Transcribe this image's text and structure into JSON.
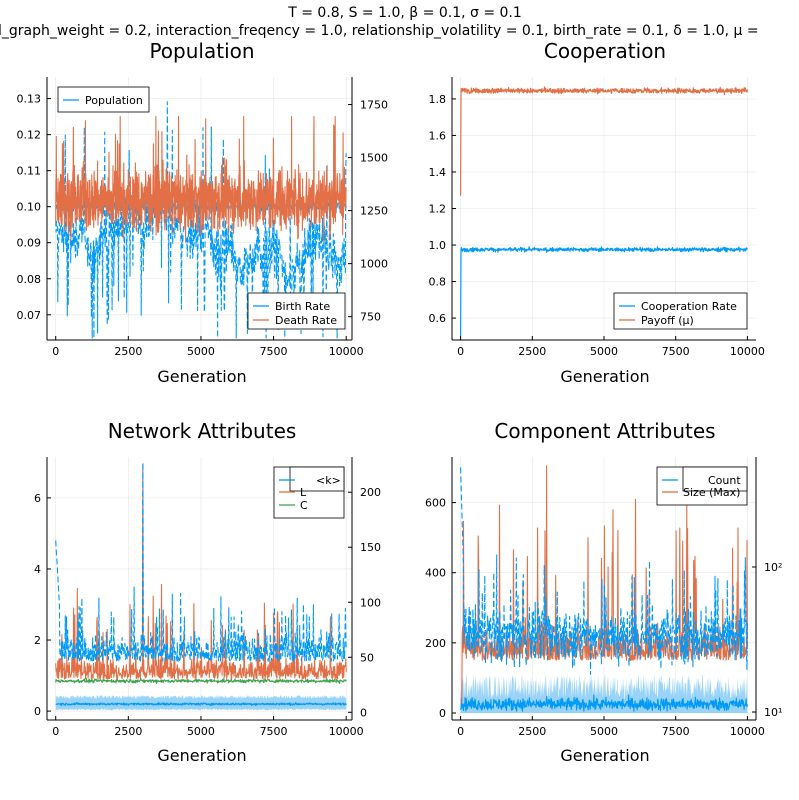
{
  "suptitle_line1": "T = 0.8, S = 1.0, β = 0.1, σ = 0.1",
  "suptitle_line2": "l_graph_weight = 0.2, interaction_freqency = 1.0, relationship_volatility = 0.1, birth_rate = 0.1, δ = 1.0, μ =",
  "colors": {
    "blue": "#009af9",
    "orange": "#e26f46",
    "green": "#3da44d",
    "band": "#7fc8f8"
  },
  "chart_data": [
    {
      "type": "line",
      "title": "Population",
      "xlabel": "Generation",
      "ylabel": "",
      "xlim": [
        -300,
        10200
      ],
      "ylim": [
        0.063,
        0.136
      ],
      "y2lim": [
        640,
        1880
      ],
      "xticks": [
        "0",
        "2500",
        "5000",
        "7500",
        "10000"
      ],
      "yticks": [
        "0.07",
        "0.08",
        "0.09",
        "0.10",
        "0.11",
        "0.12",
        "0.13"
      ],
      "y2ticks": [
        "750",
        "1000",
        "1250",
        "1500",
        "1750"
      ],
      "legend_top": {
        "position": "top-left",
        "entries": [
          "Population"
        ]
      },
      "legend_bottom": {
        "position": "bottom-right",
        "entries": [
          "Birth Rate",
          "Death Rate"
        ]
      },
      "series": [
        {
          "name": "Population",
          "axis": "right",
          "approx_range": [
            650,
            1850
          ],
          "typical": 1150
        },
        {
          "name": "Birth Rate",
          "axis": "left",
          "approx_range": [
            0.088,
            0.113
          ],
          "typical": 0.1
        },
        {
          "name": "Death Rate",
          "axis": "left",
          "approx_range": [
            0.063,
            0.135
          ],
          "typical": 0.1
        }
      ]
    },
    {
      "type": "line",
      "title": "Cooperation",
      "xlabel": "Generation",
      "ylabel": "",
      "xlim": [
        -300,
        10300
      ],
      "ylim": [
        0.48,
        1.92
      ],
      "xticks": [
        "0",
        "2500",
        "5000",
        "7500",
        "10000"
      ],
      "yticks": [
        "0.6",
        "0.8",
        "1.0",
        "1.2",
        "1.4",
        "1.6",
        "1.8"
      ],
      "legend": {
        "position": "bottom-right",
        "entries": [
          "Cooperation Rate",
          "Payoff (μ)"
        ]
      },
      "series": [
        {
          "name": "Cooperation Rate",
          "start": 0.5,
          "typical": 0.97
        },
        {
          "name": "Payoff (μ)",
          "start": 1.27,
          "typical": 1.84
        }
      ]
    },
    {
      "type": "line",
      "title": "Network Attributes",
      "xlabel": "Generation",
      "ylabel": "",
      "xlim": [
        -300,
        10200
      ],
      "ylim": [
        -0.25,
        7.15
      ],
      "y2lim": [
        -7,
        232
      ],
      "xticks": [
        "0",
        "2500",
        "5000",
        "7500",
        "10000"
      ],
      "yticks": [
        "0",
        "2",
        "4",
        "6"
      ],
      "y2ticks": [
        "0",
        "50",
        "100",
        "150",
        "200"
      ],
      "legend": {
        "position": "top-right",
        "entries": [
          "<k>",
          "L",
          "C"
        ]
      },
      "series": [
        {
          "name": "<k>",
          "axis": "left",
          "typical": 0.2,
          "band": [
            0.05,
            0.4
          ]
        },
        {
          "name": "L",
          "axis": "right",
          "typical": 45,
          "max": 225
        },
        {
          "name": "C",
          "axis": "left",
          "typical": 0.85
        }
      ]
    },
    {
      "type": "line",
      "title": "Component Attributes",
      "xlabel": "Generation",
      "ylabel": "",
      "xlim": [
        -300,
        10300
      ],
      "ylim": [
        -20,
        730
      ],
      "y2scale": "log",
      "xticks": [
        "0",
        "2500",
        "5000",
        "7500",
        "10000"
      ],
      "yticks": [
        "0",
        "200",
        "400",
        "600"
      ],
      "y2ticks": [
        "10¹",
        "10²"
      ],
      "legend": {
        "position": "top-right",
        "entries": [
          "Count",
          "Size (Max)"
        ]
      },
      "series": [
        {
          "name": "Count",
          "axis": "left",
          "typical": 250,
          "max": 700
        },
        {
          "name": "Size (Max)",
          "axis": "right",
          "typical": 50,
          "max": 600
        }
      ]
    }
  ]
}
